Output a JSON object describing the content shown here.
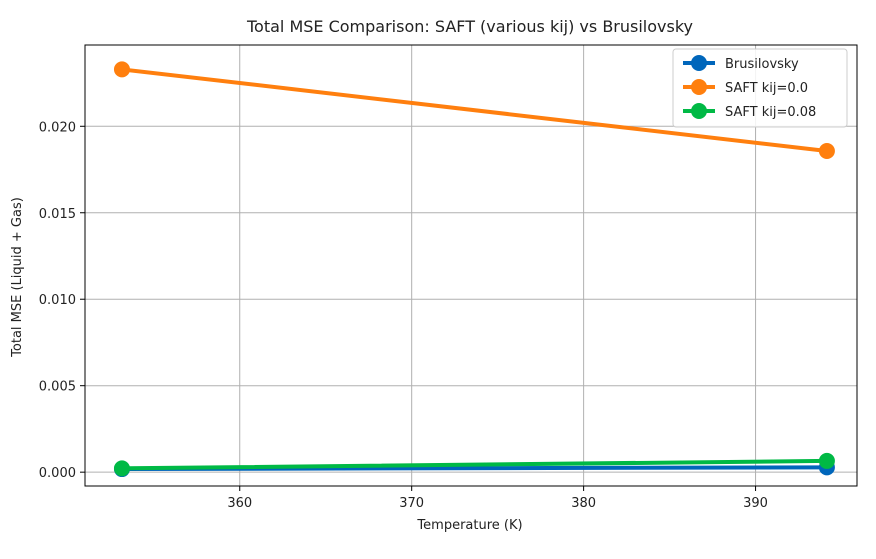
{
  "chart_data": {
    "type": "line",
    "title": "Total MSE Comparison: SAFT (various kij) vs Brusilovsky",
    "xlabel": "Temperature (K)",
    "ylabel": "Total MSE (Liquid + Gas)",
    "xlim": [
      351.0,
      395.9
    ],
    "ylim": [
      -0.0008,
      0.0247
    ],
    "xticks": [
      360,
      370,
      380,
      390
    ],
    "xtick_labels": [
      "360",
      "370",
      "380",
      "390"
    ],
    "yticks": [
      0.0,
      0.005,
      0.01,
      0.015,
      0.02
    ],
    "ytick_labels": [
      "0.000",
      "0.005",
      "0.010",
      "0.015",
      "0.020"
    ],
    "grid": true,
    "legend_position": "top-right",
    "x": [
      353.15,
      394.15
    ],
    "series": [
      {
        "name": "Brusilovsky",
        "color": "#0066bb",
        "values": [
          0.00018,
          0.00028
        ]
      },
      {
        "name": "SAFT kij=0.0",
        "color": "#ff7f0e",
        "values": [
          0.02329,
          0.01857
        ]
      },
      {
        "name": "SAFT kij=0.08",
        "color": "#00b945",
        "values": [
          0.00022,
          0.00065
        ]
      }
    ]
  }
}
